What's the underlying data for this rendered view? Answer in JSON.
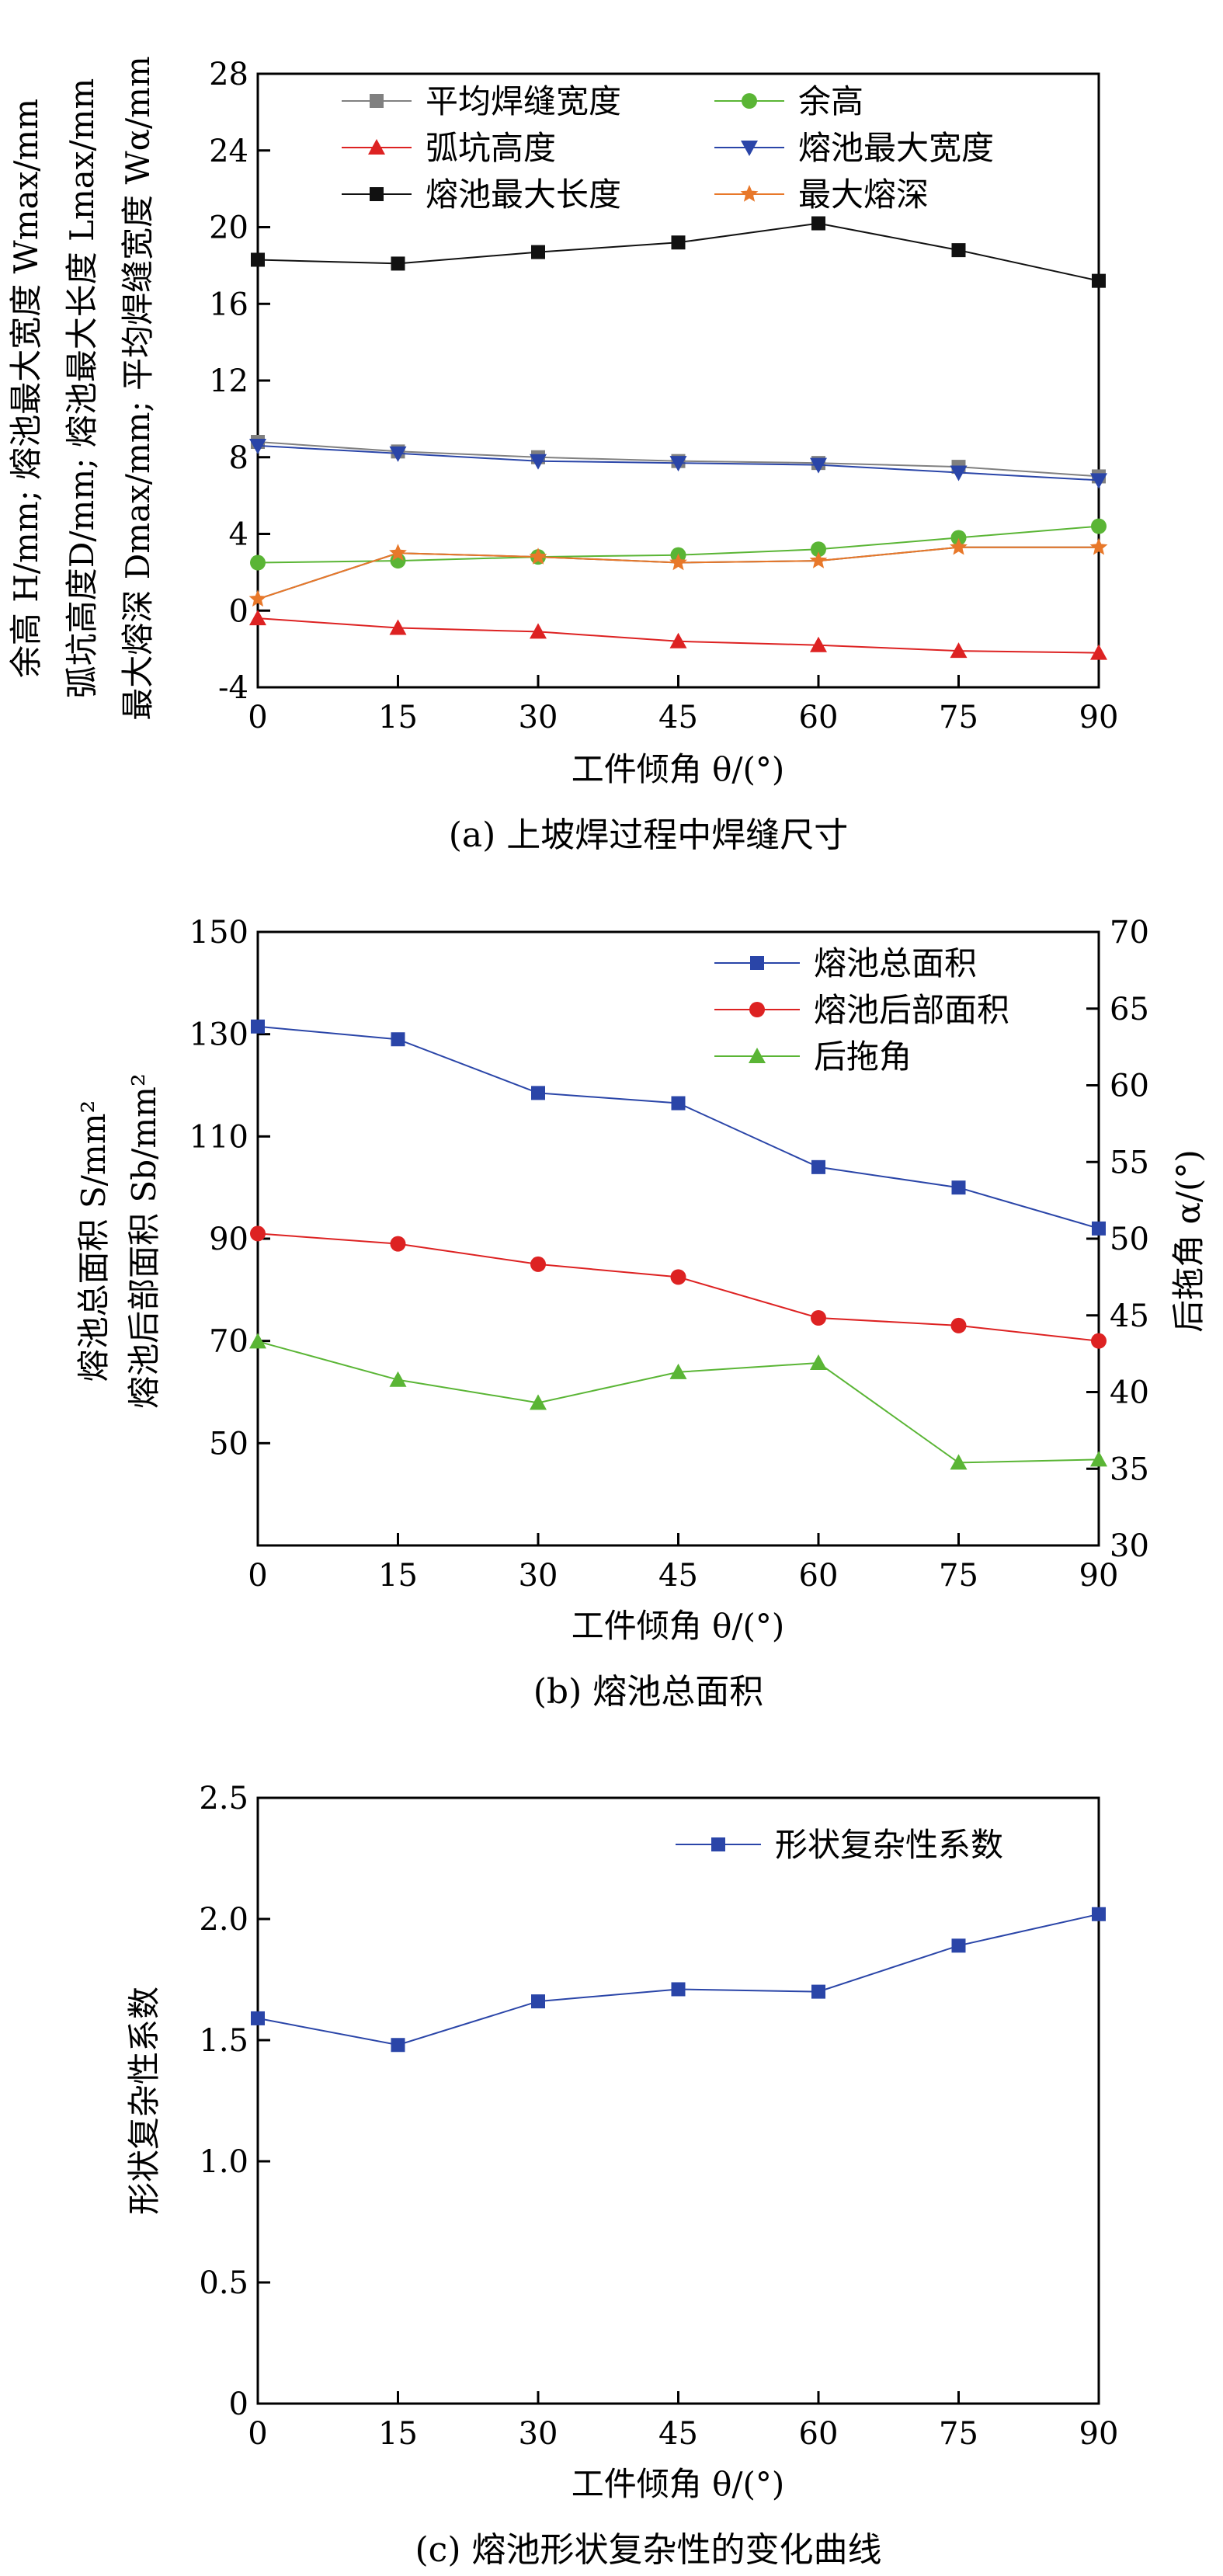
{
  "chart_data": [
    {
      "type": "line",
      "caption": "(a) 上坡焊过程中焊缝尺寸",
      "xlabel": "工件倾角 θ/(°)",
      "ylabel_lines": [
        "余高 H/mm; 熔池最大宽度 Wmax/mm",
        "弧坑高度D/mm; 熔池最大长度 Lmax/mm",
        "最大熔深 Dmax/mm; 平均焊缝宽度 Wα/mm"
      ],
      "x": [
        0,
        15,
        30,
        45,
        60,
        75,
        90
      ],
      "xticks": [
        "0",
        "15",
        "30",
        "45",
        "60",
        "75",
        "90"
      ],
      "xlim": [
        0,
        90
      ],
      "ylim": [
        -4,
        28
      ],
      "yticks": [
        "-4",
        "0",
        "4",
        "8",
        "12",
        "16",
        "20",
        "24",
        "28"
      ],
      "legend_position": "top",
      "series": [
        {
          "name": "平均焊缝宽度",
          "color": "#808080",
          "marker": "square",
          "values": [
            8.8,
            8.3,
            8.0,
            7.8,
            7.7,
            7.5,
            7.0
          ]
        },
        {
          "name": "余高",
          "color": "#5ab535",
          "marker": "circle",
          "values": [
            2.5,
            2.6,
            2.8,
            2.9,
            3.2,
            3.8,
            4.4
          ]
        },
        {
          "name": "弧坑高度",
          "color": "#dd2222",
          "marker": "triangle-up",
          "values": [
            -0.4,
            -0.9,
            -1.1,
            -1.6,
            -1.8,
            -2.1,
            -2.2
          ]
        },
        {
          "name": "熔池最大宽度",
          "color": "#2a45a8",
          "marker": "triangle-down",
          "values": [
            8.6,
            8.2,
            7.8,
            7.7,
            7.6,
            7.2,
            6.8
          ]
        },
        {
          "name": "熔池最大长度",
          "color": "#111111",
          "marker": "square",
          "values": [
            18.3,
            18.1,
            18.7,
            19.2,
            20.2,
            18.8,
            17.2
          ]
        },
        {
          "name": "最大熔深",
          "color": "#e8782a",
          "marker": "star",
          "values": [
            0.6,
            3.0,
            2.8,
            2.5,
            2.6,
            3.3,
            3.3
          ]
        }
      ],
      "extra_lines": [
        {
          "color": "#444444",
          "values": [
            0.6,
            3.0,
            2.8,
            2.5,
            2.6,
            3.3,
            3.3
          ]
        }
      ]
    },
    {
      "type": "line",
      "caption": "(b) 熔池总面积",
      "xlabel": "工件倾角 θ/(°)",
      "ylabel_lines": [
        "熔池总面积 S/mm²",
        "熔池后部面积 Sb/mm²"
      ],
      "ylabel_right": "后拖角 α/(°)",
      "x": [
        0,
        15,
        30,
        45,
        60,
        75,
        90
      ],
      "xticks": [
        "0",
        "15",
        "30",
        "45",
        "60",
        "75",
        "90"
      ],
      "xlim": [
        0,
        90
      ],
      "ylim": [
        30,
        150
      ],
      "yticks": [
        "50",
        "70",
        "90",
        "110",
        "130",
        "150"
      ],
      "ylim_right": [
        30,
        70
      ],
      "yticks_right": [
        "30",
        "35",
        "40",
        "45",
        "50",
        "55",
        "60",
        "65",
        "70"
      ],
      "legend_position": "top-right",
      "series": [
        {
          "name": "熔池总面积",
          "color": "#2a45a8",
          "marker": "square",
          "axis": "left",
          "values": [
            131.5,
            129.0,
            118.5,
            116.5,
            104.0,
            100.0,
            92.0
          ]
        },
        {
          "name": "熔池后部面积",
          "color": "#dd2222",
          "marker": "circle",
          "axis": "left",
          "values": [
            91.0,
            89.0,
            85.0,
            82.5,
            74.5,
            73.0,
            70.0
          ]
        },
        {
          "name": "后拖角",
          "color": "#5ab535",
          "marker": "triangle-up",
          "axis": "right",
          "values": [
            43.3,
            40.8,
            39.3,
            41.3,
            41.9,
            35.4,
            35.6
          ]
        }
      ]
    },
    {
      "type": "line",
      "caption": "(c) 熔池形状复杂性的变化曲线",
      "xlabel": "工件倾角 θ/(°)",
      "ylabel_lines": [
        "形状复杂性系数"
      ],
      "x": [
        0,
        15,
        30,
        45,
        60,
        75,
        90
      ],
      "xticks": [
        "0",
        "15",
        "30",
        "45",
        "60",
        "75",
        "90"
      ],
      "xlim": [
        0,
        90
      ],
      "ylim": [
        0,
        2.5
      ],
      "yticks": [
        "0",
        "0.5",
        "1.0",
        "1.5",
        "2.0",
        "2.5"
      ],
      "legend_position": "top-right",
      "series": [
        {
          "name": "形状复杂性系数",
          "color": "#2a45a8",
          "marker": "square",
          "values": [
            1.59,
            1.48,
            1.66,
            1.71,
            1.7,
            1.89,
            2.02
          ]
        }
      ]
    }
  ]
}
